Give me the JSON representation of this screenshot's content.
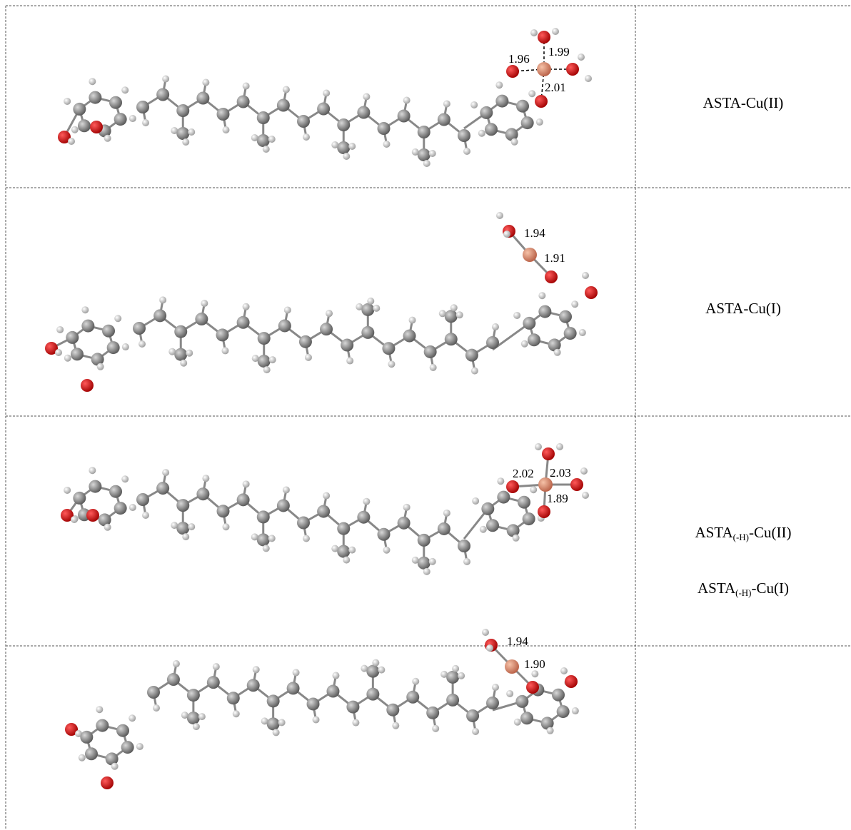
{
  "table": {
    "rows": [
      {
        "distances": [
          "1.96",
          "1.99",
          "2.01"
        ],
        "label": "ASTA-Cu(II)"
      },
      {
        "distances": [
          "1.94",
          "1.91"
        ],
        "label": "ASTA-Cu(I)"
      },
      {
        "distances": [
          "2.02",
          "2.03",
          "1.89"
        ],
        "label_parts": [
          "ASTA",
          "(-H)",
          "-Cu(II)"
        ]
      },
      {
        "distances": [
          "1.94",
          "1.90"
        ],
        "label_parts": [
          "ASTA",
          "(-H)",
          "-Cu(I)"
        ]
      }
    ]
  }
}
